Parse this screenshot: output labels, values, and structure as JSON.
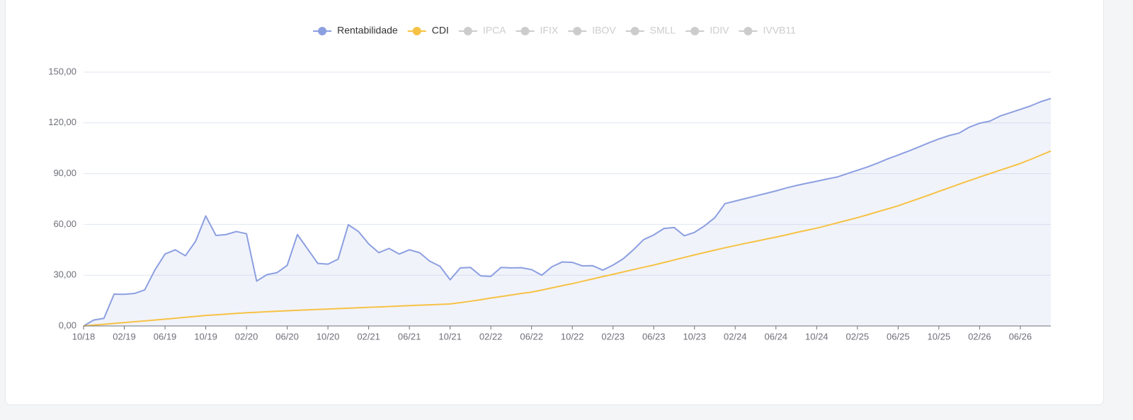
{
  "chart_data": {
    "type": "line",
    "categories": [
      "10/18",
      null,
      null,
      null,
      "02/19",
      null,
      null,
      null,
      "06/19",
      null,
      null,
      null,
      "10/19",
      null,
      null,
      null,
      "02/20",
      null,
      null,
      null,
      "06/20",
      null,
      null,
      null,
      "10/20",
      null,
      null,
      null,
      "02/21",
      null,
      null,
      null,
      "06/21",
      null,
      null,
      null,
      "10/21",
      null,
      null,
      null,
      "02/22",
      null,
      null,
      null,
      "06/22",
      null,
      null,
      null,
      "10/22",
      null,
      null,
      null,
      "02/23",
      null,
      null,
      null,
      "06/23",
      null,
      null,
      null,
      "10/23",
      null,
      null,
      null,
      "02/24",
      null,
      null,
      null,
      "06/24",
      null,
      null,
      null,
      "10/24",
      null,
      null,
      null,
      "02/25",
      null,
      null,
      null,
      "06/25",
      null,
      null,
      null,
      "10/25",
      null,
      null,
      null,
      "02/26",
      null,
      null,
      null,
      "06/26",
      null,
      null,
      null
    ],
    "series": [
      {
        "name": "Rentabilidade",
        "color": "#8c9fe0",
        "area": true,
        "values": [
          0,
          3.5,
          4.5,
          18.8,
          18.7,
          19.2,
          21.3,
          33,
          42.5,
          45,
          41.5,
          50,
          65,
          53.5,
          54,
          55.8,
          54.5,
          26.5,
          30.3,
          31.5,
          35.8,
          54,
          45.5,
          37,
          36.5,
          39.5,
          59.8,
          55.8,
          48.5,
          43.3,
          45.8,
          42.5,
          45,
          43.3,
          38.3,
          35.3,
          27.3,
          34.3,
          34.6,
          29.6,
          29.3,
          34.6,
          34.3,
          34.4,
          33.3,
          30,
          35,
          37.8,
          37.6,
          35.5,
          35.6,
          33,
          36,
          39.7,
          45,
          51,
          53.8,
          57.6,
          58.2,
          53.3,
          55.3,
          59.2,
          64,
          72.3,
          73.8,
          75.3,
          76.8,
          78.3,
          79.8,
          81.5,
          83,
          84.3,
          85.5,
          86.8,
          88,
          90,
          92,
          94,
          96.3,
          98.8,
          101,
          103.3,
          105.7,
          108.2,
          110.5,
          112.5,
          114,
          117.5,
          119.8,
          121,
          124,
          126,
          128,
          130,
          132.5,
          134.4
        ]
      },
      {
        "name": "CDI",
        "color": "#f6c244",
        "area": false,
        "values": [
          0,
          0.5,
          1,
          1.5,
          2,
          2.5,
          3,
          3.5,
          4,
          4.55,
          5.1,
          5.65,
          6.2,
          6.6,
          7,
          7.4,
          7.8,
          8.1,
          8.4,
          8.7,
          9,
          9.25,
          9.5,
          9.75,
          10,
          10.25,
          10.5,
          10.75,
          11,
          11.25,
          11.5,
          11.75,
          12,
          12.25,
          12.5,
          12.75,
          13,
          13.8,
          14.6,
          15.5,
          16.5,
          17.4,
          18.3,
          19.2,
          20,
          21.2,
          22.5,
          23.8,
          25,
          26.4,
          27.8,
          29.2,
          30.5,
          31.9,
          33.3,
          34.7,
          36,
          37.5,
          39,
          40.5,
          42,
          43.4,
          44.8,
          46.2,
          47.5,
          48.8,
          50,
          51.3,
          52.5,
          53.8,
          55.2,
          56.5,
          57.8,
          59.3,
          60.9,
          62.4,
          64,
          65.7,
          67.5,
          69.2,
          71,
          73.1,
          75.2,
          77.3,
          79.5,
          81.6,
          83.8,
          85.9,
          88,
          90,
          92,
          94,
          96,
          98.4,
          100.9,
          103.4
        ]
      }
    ],
    "hidden_series": [
      {
        "name": "IPCA",
        "color": "#cccccc"
      },
      {
        "name": "IFIX",
        "color": "#cccccc"
      },
      {
        "name": "IBOV",
        "color": "#cccccc"
      },
      {
        "name": "SMLL",
        "color": "#cccccc"
      },
      {
        "name": "IDIV",
        "color": "#cccccc"
      },
      {
        "name": "IVVB11",
        "color": "#cccccc"
      }
    ],
    "ylim": [
      0,
      150
    ],
    "yticks": [
      {
        "value": 0,
        "label": "0,00"
      },
      {
        "value": 30,
        "label": "30,00"
      },
      {
        "value": 60,
        "label": "60,00"
      },
      {
        "value": 90,
        "label": "90,00"
      },
      {
        "value": 120,
        "label": "120,00"
      },
      {
        "value": 150,
        "label": "150,00"
      }
    ],
    "grid": true,
    "legend": "top"
  }
}
